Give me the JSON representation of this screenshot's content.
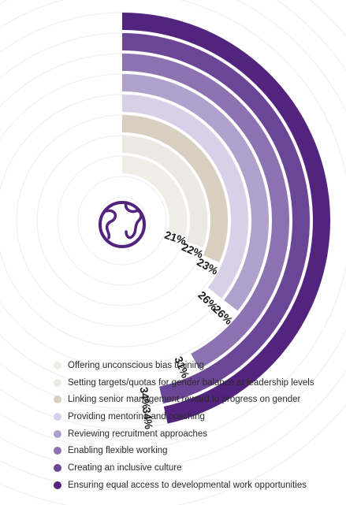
{
  "chart_data": {
    "type": "radial_bar",
    "title": "",
    "value_suffix": "%",
    "max_value": 34,
    "series": [
      {
        "name": "Offering unconscious bias training",
        "value": 21,
        "label": "21%",
        "color": "#f0ece6"
      },
      {
        "name": "Setting targets/quotas for gender balance at leadership levels",
        "value": 22,
        "label": "22%",
        "color": "#ece9e3"
      },
      {
        "name": "Linking senior management reward to progress on gender",
        "value": 23,
        "label": "23%",
        "color": "#d9cfc1"
      },
      {
        "name": "Providing mentoring and coaching",
        "value": 26,
        "label": "26%",
        "color": "#d8d0e6"
      },
      {
        "name": "Reviewing recruitment approaches",
        "value": 26,
        "label": "26%",
        "color": "#b0a0cc"
      },
      {
        "name": "Enabling flexible working",
        "value": 31,
        "label": "31%",
        "color": "#8d72b2"
      },
      {
        "name": "Creating an inclusive culture",
        "value": 34,
        "label": "34%",
        "color": "#6b4596"
      },
      {
        "name": "Ensuring equal access to developmental work opportunities",
        "value": 34,
        "label": "34%",
        "color": "#52237f"
      }
    ]
  },
  "icon": {
    "name": "globe-icon",
    "color": "#52237f"
  },
  "guide_circle_color": "#eeeeee"
}
